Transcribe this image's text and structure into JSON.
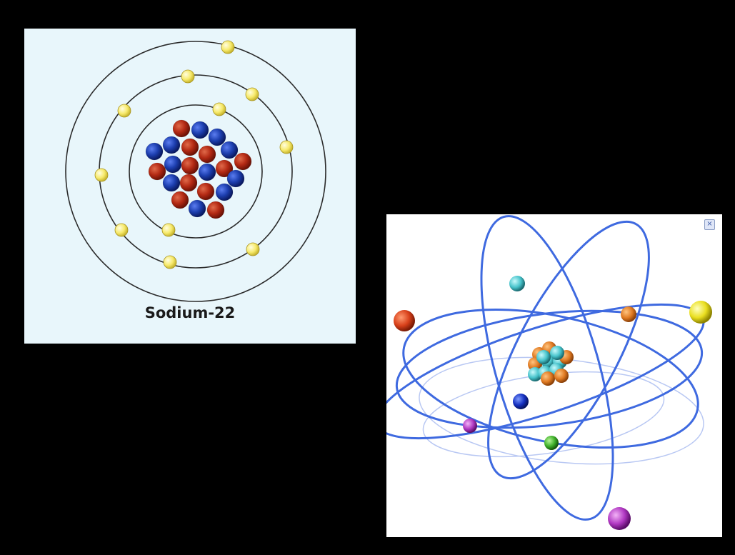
{
  "left_diagram": {
    "caption": "Sodium-22",
    "colors": {
      "background": "#e8f6fb",
      "shell": "#2b2b2b",
      "electron": "#f7ea6c",
      "proton": "#b42a14",
      "neutron": "#1d3fb0"
    }
  },
  "right_diagram": {
    "close_icon": "close-icon",
    "colors": {
      "background": "#ffffff",
      "orbit": "#3f6ae0",
      "orbit_faint": "#b9c8f3",
      "nucleus_orange": "#e07a22",
      "nucleus_cyan": "#48c4cc"
    }
  }
}
